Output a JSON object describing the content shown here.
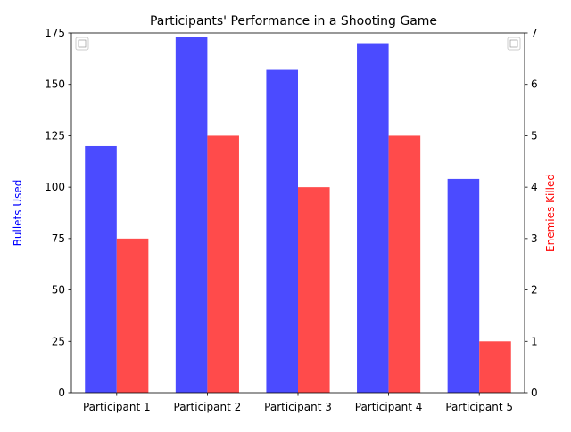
{
  "chart_data": {
    "type": "bar",
    "title": "Participants' Performance in a Shooting Game",
    "categories": [
      "Participant 1",
      "Participant 2",
      "Participant 3",
      "Participant 4",
      "Participant 5"
    ],
    "series": [
      {
        "name": "",
        "axis": "left",
        "color": "#4b4bff",
        "values": [
          120,
          173,
          157,
          170,
          104
        ]
      },
      {
        "name": "",
        "axis": "right",
        "color": "#ff4b4b",
        "values": [
          3,
          5,
          4,
          5,
          1
        ]
      }
    ],
    "y_left": {
      "label": "Bullets Used",
      "label_color": "#0000ff",
      "lim": [
        0,
        175
      ],
      "ticks": [
        0,
        25,
        50,
        75,
        100,
        125,
        150,
        175
      ]
    },
    "y_right": {
      "label": "Enemies Killed",
      "label_color": "#ff0000",
      "lim": [
        0,
        7
      ],
      "ticks": [
        0,
        1,
        2,
        3,
        4,
        5,
        6,
        7
      ]
    },
    "legends": [
      "top-left",
      "top-right"
    ],
    "grid": false
  }
}
